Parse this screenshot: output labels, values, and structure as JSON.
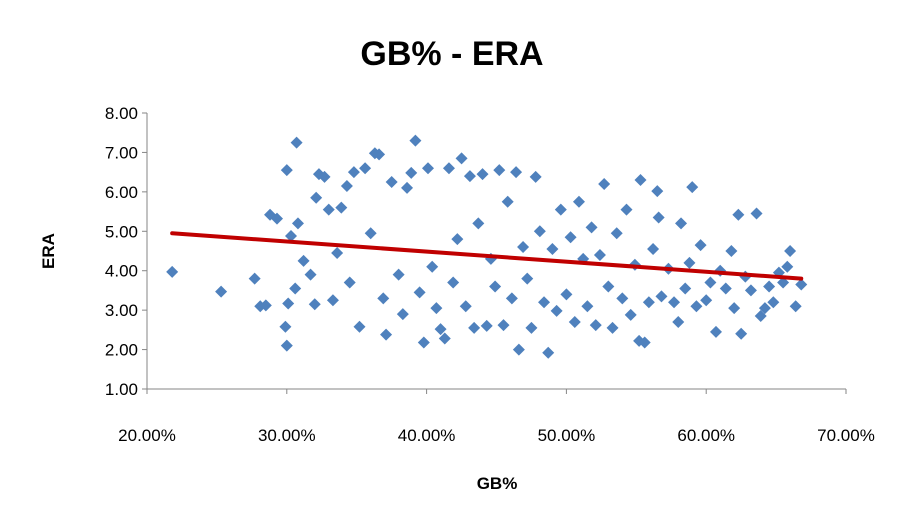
{
  "chart_data": {
    "type": "scatter",
    "title": "GB% - ERA",
    "xlabel": "GB%",
    "ylabel": "ERA",
    "xlim": [
      0.2,
      0.7
    ],
    "ylim": [
      1.0,
      8.0
    ],
    "x_ticks": [
      "20.00%",
      "30.00%",
      "40.00%",
      "50.00%",
      "60.00%",
      "70.00%"
    ],
    "y_ticks": [
      "1.00",
      "2.00",
      "3.00",
      "4.00",
      "5.00",
      "6.00",
      "7.00",
      "8.00"
    ],
    "grid": false,
    "legend": "none",
    "series": [
      {
        "marker": "diamond",
        "color": "#4f81bd",
        "points": [
          [
            0.218,
            3.97
          ],
          [
            0.253,
            3.47
          ],
          [
            0.277,
            3.8
          ],
          [
            0.281,
            3.1
          ],
          [
            0.285,
            3.12
          ],
          [
            0.288,
            5.42
          ],
          [
            0.293,
            5.32
          ],
          [
            0.3,
            2.1
          ],
          [
            0.299,
            2.58
          ],
          [
            0.3,
            6.55
          ],
          [
            0.301,
            3.17
          ],
          [
            0.303,
            4.88
          ],
          [
            0.306,
            3.55
          ],
          [
            0.307,
            7.25
          ],
          [
            0.308,
            5.2
          ],
          [
            0.312,
            4.25
          ],
          [
            0.317,
            3.9
          ],
          [
            0.32,
            3.15
          ],
          [
            0.321,
            5.85
          ],
          [
            0.323,
            6.45
          ],
          [
            0.327,
            6.38
          ],
          [
            0.33,
            5.55
          ],
          [
            0.333,
            3.25
          ],
          [
            0.336,
            4.45
          ],
          [
            0.339,
            5.6
          ],
          [
            0.343,
            6.15
          ],
          [
            0.345,
            3.7
          ],
          [
            0.348,
            6.5
          ],
          [
            0.352,
            2.58
          ],
          [
            0.356,
            6.6
          ],
          [
            0.36,
            4.95
          ],
          [
            0.363,
            6.98
          ],
          [
            0.366,
            6.95
          ],
          [
            0.369,
            3.3
          ],
          [
            0.371,
            2.38
          ],
          [
            0.375,
            6.25
          ],
          [
            0.38,
            3.9
          ],
          [
            0.383,
            2.9
          ],
          [
            0.386,
            6.1
          ],
          [
            0.389,
            6.48
          ],
          [
            0.392,
            7.3
          ],
          [
            0.395,
            3.45
          ],
          [
            0.398,
            2.18
          ],
          [
            0.401,
            6.6
          ],
          [
            0.404,
            4.1
          ],
          [
            0.407,
            3.05
          ],
          [
            0.41,
            2.52
          ],
          [
            0.413,
            2.28
          ],
          [
            0.416,
            6.6
          ],
          [
            0.419,
            3.7
          ],
          [
            0.422,
            4.8
          ],
          [
            0.425,
            6.85
          ],
          [
            0.428,
            3.1
          ],
          [
            0.431,
            6.4
          ],
          [
            0.434,
            2.55
          ],
          [
            0.437,
            5.2
          ],
          [
            0.44,
            6.45
          ],
          [
            0.443,
            2.6
          ],
          [
            0.446,
            4.3
          ],
          [
            0.449,
            3.6
          ],
          [
            0.452,
            6.55
          ],
          [
            0.455,
            2.62
          ],
          [
            0.458,
            5.75
          ],
          [
            0.461,
            3.3
          ],
          [
            0.464,
            6.5
          ],
          [
            0.466,
            2.0
          ],
          [
            0.469,
            4.6
          ],
          [
            0.472,
            3.8
          ],
          [
            0.475,
            2.55
          ],
          [
            0.478,
            6.38
          ],
          [
            0.481,
            5.0
          ],
          [
            0.484,
            3.2
          ],
          [
            0.487,
            1.92
          ],
          [
            0.49,
            4.55
          ],
          [
            0.493,
            2.98
          ],
          [
            0.496,
            5.55
          ],
          [
            0.5,
            3.4
          ],
          [
            0.503,
            4.85
          ],
          [
            0.506,
            2.7
          ],
          [
            0.509,
            5.75
          ],
          [
            0.512,
            4.3
          ],
          [
            0.515,
            3.1
          ],
          [
            0.518,
            5.1
          ],
          [
            0.521,
            2.62
          ],
          [
            0.524,
            4.4
          ],
          [
            0.527,
            6.2
          ],
          [
            0.53,
            3.6
          ],
          [
            0.533,
            2.55
          ],
          [
            0.536,
            4.95
          ],
          [
            0.54,
            3.3
          ],
          [
            0.543,
            5.55
          ],
          [
            0.546,
            2.88
          ],
          [
            0.549,
            4.15
          ],
          [
            0.552,
            2.22
          ],
          [
            0.553,
            6.3
          ],
          [
            0.556,
            2.18
          ],
          [
            0.559,
            3.2
          ],
          [
            0.562,
            4.55
          ],
          [
            0.565,
            6.02
          ],
          [
            0.566,
            5.35
          ],
          [
            0.568,
            3.35
          ],
          [
            0.573,
            4.05
          ],
          [
            0.577,
            3.2
          ],
          [
            0.58,
            2.7
          ],
          [
            0.582,
            5.2
          ],
          [
            0.585,
            3.55
          ],
          [
            0.588,
            4.2
          ],
          [
            0.59,
            6.12
          ],
          [
            0.593,
            3.1
          ],
          [
            0.596,
            4.65
          ],
          [
            0.6,
            3.25
          ],
          [
            0.603,
            3.7
          ],
          [
            0.607,
            2.45
          ],
          [
            0.61,
            4.0
          ],
          [
            0.614,
            3.55
          ],
          [
            0.618,
            4.5
          ],
          [
            0.62,
            3.05
          ],
          [
            0.623,
            5.42
          ],
          [
            0.625,
            2.4
          ],
          [
            0.628,
            3.85
          ],
          [
            0.632,
            3.5
          ],
          [
            0.636,
            5.45
          ],
          [
            0.639,
            2.85
          ],
          [
            0.642,
            3.05
          ],
          [
            0.645,
            3.6
          ],
          [
            0.648,
            3.2
          ],
          [
            0.652,
            3.95
          ],
          [
            0.655,
            3.7
          ],
          [
            0.658,
            4.1
          ],
          [
            0.66,
            4.5
          ],
          [
            0.664,
            3.1
          ],
          [
            0.668,
            3.65
          ]
        ]
      },
      {
        "type": "line",
        "color": "#c00000",
        "points": [
          [
            0.218,
            4.95
          ],
          [
            0.668,
            3.8
          ]
        ]
      }
    ]
  }
}
